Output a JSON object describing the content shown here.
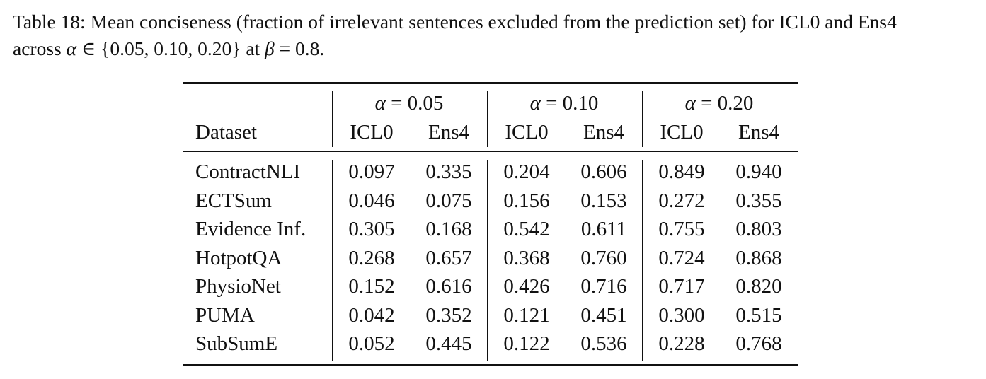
{
  "caption": {
    "line1": "Table 18: Mean conciseness (fraction of irrelevant sentences excluded from the prediction set) for ICL0 and Ens4",
    "line2_prefix": "across ",
    "alpha_symbol": "α",
    "elem_symbol": " ∈ ",
    "set_text": "{0.05, 0.10, 0.20}",
    "at_text": " at ",
    "beta_symbol": "β",
    "beta_eq": " = 0.8",
    "end": "."
  },
  "table": {
    "dataset_header": "Dataset",
    "groups": [
      {
        "alpha": "α",
        "eq": " = 0.05"
      },
      {
        "alpha": "α",
        "eq": " = 0.10"
      },
      {
        "alpha": "α",
        "eq": " = 0.20"
      }
    ],
    "subheaders": [
      "ICL0",
      "Ens4",
      "ICL0",
      "Ens4",
      "ICL0",
      "Ens4"
    ],
    "rows": [
      {
        "dataset": "ContractNLI",
        "values": [
          "0.097",
          "0.335",
          "0.204",
          "0.606",
          "0.849",
          "0.940"
        ]
      },
      {
        "dataset": "ECTSum",
        "values": [
          "0.046",
          "0.075",
          "0.156",
          "0.153",
          "0.272",
          "0.355"
        ]
      },
      {
        "dataset": "Evidence Inf.",
        "values": [
          "0.305",
          "0.168",
          "0.542",
          "0.611",
          "0.755",
          "0.803"
        ]
      },
      {
        "dataset": "HotpotQA",
        "values": [
          "0.268",
          "0.657",
          "0.368",
          "0.760",
          "0.724",
          "0.868"
        ]
      },
      {
        "dataset": "PhysioNet",
        "values": [
          "0.152",
          "0.616",
          "0.426",
          "0.716",
          "0.717",
          "0.820"
        ]
      },
      {
        "dataset": "PUMA",
        "values": [
          "0.042",
          "0.352",
          "0.121",
          "0.451",
          "0.300",
          "0.515"
        ]
      },
      {
        "dataset": "SubSumE",
        "values": [
          "0.052",
          "0.445",
          "0.122",
          "0.536",
          "0.228",
          "0.768"
        ]
      }
    ]
  }
}
